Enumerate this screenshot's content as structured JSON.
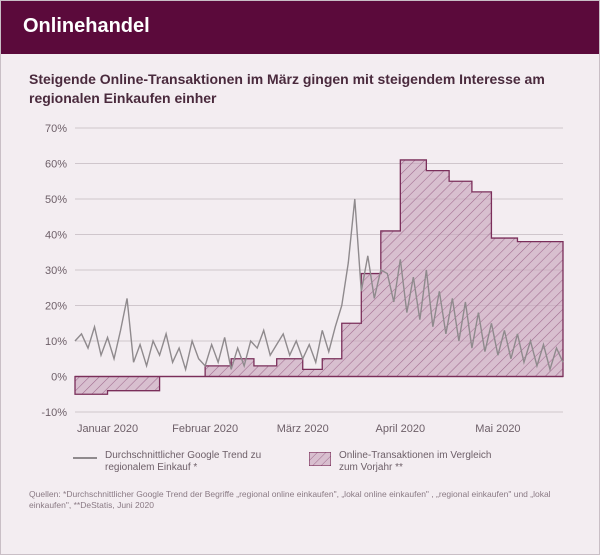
{
  "header": {
    "title": "Onlinehandel"
  },
  "subtitle": "Steigende Online-Transaktionen im März gingen mit steigendem Interesse am regionalen Einkaufen einher",
  "chart": {
    "type": "line+area",
    "background_color": "#f3edf1",
    "grid_color": "#cfc6cc",
    "axis_label_color": "#6d5f68",
    "axis_label_fontsize": 11,
    "ylim": [
      -10,
      70
    ],
    "yticks": [
      -10,
      0,
      10,
      20,
      30,
      40,
      50,
      60,
      70
    ],
    "ytick_labels": [
      "-10%",
      "0%",
      "10%",
      "20%",
      "30%",
      "40%",
      "50%",
      "60%",
      "70%"
    ],
    "x_start": 0,
    "x_end": 150,
    "xtick_positions": [
      10,
      40,
      70,
      100,
      130
    ],
    "xtick_labels": [
      "Januar 2020",
      "Februar 2020",
      "März 2020",
      "April 2020",
      "Mai 2020"
    ],
    "area_series": {
      "color_stroke": "#7a2e5a",
      "color_fill": "#c9a6bd",
      "hatch_color": "#a06a8e",
      "fill_opacity": 0.65,
      "steps": [
        {
          "x0": 0,
          "x1": 10,
          "y": -5
        },
        {
          "x0": 10,
          "x1": 18,
          "y": -4
        },
        {
          "x0": 18,
          "x1": 26,
          "y": -4
        },
        {
          "x0": 26,
          "x1": 33,
          "y": 0
        },
        {
          "x0": 33,
          "x1": 40,
          "y": 0
        },
        {
          "x0": 40,
          "x1": 48,
          "y": 3
        },
        {
          "x0": 48,
          "x1": 55,
          "y": 5
        },
        {
          "x0": 55,
          "x1": 62,
          "y": 3
        },
        {
          "x0": 62,
          "x1": 70,
          "y": 5
        },
        {
          "x0": 70,
          "x1": 76,
          "y": 2
        },
        {
          "x0": 76,
          "x1": 82,
          "y": 5
        },
        {
          "x0": 82,
          "x1": 88,
          "y": 15
        },
        {
          "x0": 88,
          "x1": 94,
          "y": 29
        },
        {
          "x0": 94,
          "x1": 100,
          "y": 41
        },
        {
          "x0": 100,
          "x1": 108,
          "y": 61
        },
        {
          "x0": 108,
          "x1": 115,
          "y": 58
        },
        {
          "x0": 115,
          "x1": 122,
          "y": 55
        },
        {
          "x0": 122,
          "x1": 128,
          "y": 52
        },
        {
          "x0": 128,
          "x1": 136,
          "y": 39
        },
        {
          "x0": 136,
          "x1": 150,
          "y": 38
        }
      ]
    },
    "line_series": {
      "color": "#8f8a8d",
      "width": 1.4,
      "points": [
        [
          0,
          10
        ],
        [
          2,
          12
        ],
        [
          4,
          8
        ],
        [
          6,
          14
        ],
        [
          8,
          6
        ],
        [
          10,
          11
        ],
        [
          12,
          5
        ],
        [
          14,
          13
        ],
        [
          16,
          22
        ],
        [
          18,
          4
        ],
        [
          20,
          9
        ],
        [
          22,
          3
        ],
        [
          24,
          10
        ],
        [
          26,
          6
        ],
        [
          28,
          12
        ],
        [
          30,
          4
        ],
        [
          32,
          8
        ],
        [
          34,
          2
        ],
        [
          36,
          10
        ],
        [
          38,
          5
        ],
        [
          40,
          3
        ],
        [
          42,
          9
        ],
        [
          44,
          4
        ],
        [
          46,
          11
        ],
        [
          48,
          2
        ],
        [
          50,
          8
        ],
        [
          52,
          3
        ],
        [
          54,
          10
        ],
        [
          56,
          8
        ],
        [
          58,
          13
        ],
        [
          60,
          6
        ],
        [
          62,
          9
        ],
        [
          64,
          12
        ],
        [
          66,
          6
        ],
        [
          68,
          10
        ],
        [
          70,
          5
        ],
        [
          72,
          9
        ],
        [
          74,
          4
        ],
        [
          76,
          13
        ],
        [
          78,
          7
        ],
        [
          80,
          14
        ],
        [
          82,
          20
        ],
        [
          84,
          32
        ],
        [
          86,
          50
        ],
        [
          88,
          24
        ],
        [
          90,
          34
        ],
        [
          92,
          22
        ],
        [
          94,
          30
        ],
        [
          96,
          29
        ],
        [
          98,
          21
        ],
        [
          100,
          33
        ],
        [
          102,
          18
        ],
        [
          104,
          28
        ],
        [
          106,
          16
        ],
        [
          108,
          30
        ],
        [
          110,
          14
        ],
        [
          112,
          24
        ],
        [
          114,
          12
        ],
        [
          116,
          22
        ],
        [
          118,
          10
        ],
        [
          120,
          21
        ],
        [
          122,
          8
        ],
        [
          124,
          18
        ],
        [
          126,
          7
        ],
        [
          128,
          15
        ],
        [
          130,
          6
        ],
        [
          132,
          13
        ],
        [
          134,
          5
        ],
        [
          136,
          12
        ],
        [
          138,
          4
        ],
        [
          140,
          10
        ],
        [
          142,
          3
        ],
        [
          144,
          9
        ],
        [
          146,
          2
        ],
        [
          148,
          8
        ],
        [
          150,
          4
        ]
      ]
    }
  },
  "legend": {
    "line_label": "Durchschnittlicher Google Trend zu regionalem Einkauf *",
    "area_label": "Online-Transaktionen im Vergleich zum Vorjahr **"
  },
  "sources": "Quellen: *Durchschnittlicher Google Trend der Begriffe „regional online einkaufen\", „lokal online einkaufen\" , „regional einkaufen\" und „lokal einkaufen\", **DeStatis, Juni 2020"
}
